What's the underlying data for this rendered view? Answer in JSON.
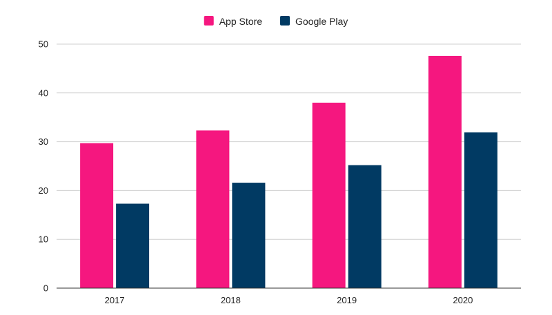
{
  "chart_data": {
    "type": "bar",
    "title": "",
    "xlabel": "",
    "ylabel": "",
    "categories": [
      "2017",
      "2018",
      "2019",
      "2020"
    ],
    "series": [
      {
        "name": "App Store",
        "color": "#f5177f",
        "values": [
          29.7,
          32.3,
          38.0,
          47.6
        ]
      },
      {
        "name": "Google Play",
        "color": "#013a63",
        "values": [
          17.3,
          21.6,
          25.2,
          31.9
        ]
      }
    ],
    "ylim": [
      0,
      50
    ],
    "yticks": [
      "0",
      "10",
      "20",
      "30",
      "40",
      "50"
    ],
    "grid": true,
    "legend_position": "top-center"
  }
}
